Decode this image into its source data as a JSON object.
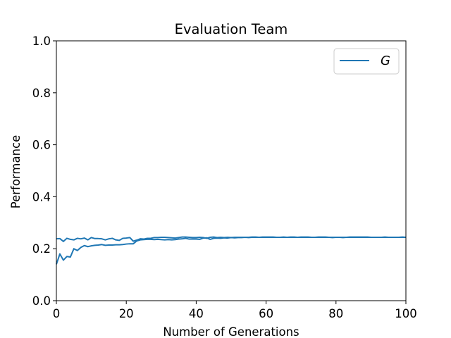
{
  "chart_data": {
    "type": "line",
    "title": "Evaluation Team",
    "xlabel": "Number of Generations",
    "ylabel": "Performance",
    "xlim": [
      0,
      100
    ],
    "ylim": [
      0,
      1
    ],
    "xticks": [
      "0",
      "20",
      "40",
      "60",
      "80",
      "100"
    ],
    "yticks": [
      "0.0",
      "0.2",
      "0.4",
      "0.6",
      "0.8",
      "1.0"
    ],
    "grid": false,
    "legend_position": "top-right",
    "color": "#1f77b4",
    "series": [
      {
        "name": "G",
        "x": [
          0,
          1,
          2,
          3,
          4,
          5,
          6,
          7,
          8,
          9,
          10,
          11,
          12,
          13,
          14,
          15,
          16,
          17,
          18,
          19,
          20,
          21,
          22,
          23,
          24,
          25,
          26,
          27,
          28,
          29,
          30,
          31,
          32,
          33,
          34,
          35,
          36,
          37,
          38,
          39,
          40,
          41,
          42,
          43,
          44,
          45,
          46,
          47,
          48,
          49,
          50,
          51,
          52,
          53,
          54,
          55,
          56,
          57,
          58,
          59,
          60,
          61,
          62,
          63,
          64,
          65,
          66,
          67,
          68,
          69,
          70,
          71,
          72,
          73,
          74,
          75,
          76,
          77,
          78,
          79,
          80,
          81,
          82,
          83,
          84,
          85,
          86,
          87,
          88,
          89,
          90,
          91,
          92,
          93,
          94,
          95,
          96,
          97,
          98,
          99,
          100
        ],
        "y": [
          0.238,
          0.239,
          0.228,
          0.24,
          0.236,
          0.234,
          0.24,
          0.238,
          0.241,
          0.234,
          0.243,
          0.239,
          0.239,
          0.238,
          0.234,
          0.238,
          0.24,
          0.234,
          0.232,
          0.24,
          0.241,
          0.243,
          0.229,
          0.233,
          0.238,
          0.237,
          0.24,
          0.24,
          0.243,
          0.243,
          0.244,
          0.244,
          0.243,
          0.242,
          0.241,
          0.243,
          0.245,
          0.245,
          0.244,
          0.243,
          0.243,
          0.244,
          0.243,
          0.24,
          0.244,
          0.245,
          0.243,
          0.244,
          0.243,
          0.244,
          0.243,
          0.244,
          0.244,
          0.244,
          0.244,
          0.244,
          0.245,
          0.245,
          0.244,
          0.245,
          0.245,
          0.245,
          0.245,
          0.244,
          0.244,
          0.245,
          0.244,
          0.245,
          0.245,
          0.244,
          0.245,
          0.245,
          0.245,
          0.244,
          0.244,
          0.245,
          0.245,
          0.245,
          0.244,
          0.243,
          0.244,
          0.244,
          0.243,
          0.244,
          0.245,
          0.245,
          0.245,
          0.245,
          0.245,
          0.245,
          0.244,
          0.244,
          0.244,
          0.244,
          0.245,
          0.244,
          0.244,
          0.244,
          0.244,
          0.245,
          0.244
        ]
      },
      {
        "name": "",
        "x": [
          0,
          1,
          2,
          3,
          4,
          5,
          6,
          7,
          8,
          9,
          10,
          11,
          12,
          13,
          14,
          15,
          16,
          17,
          18,
          19,
          20,
          21,
          22,
          23,
          24,
          25,
          26,
          27,
          28,
          29,
          30,
          31,
          32,
          33,
          34,
          35,
          36,
          37,
          38,
          39,
          40,
          41,
          42,
          43,
          44,
          45,
          46,
          47,
          48,
          49,
          50,
          51,
          52,
          53,
          54,
          55,
          56,
          57,
          58,
          59,
          60,
          61,
          62,
          63,
          64,
          65,
          66,
          67,
          68,
          69,
          70,
          71,
          72,
          73,
          74,
          75,
          76,
          77,
          78,
          79,
          80,
          81,
          82,
          83,
          84,
          85,
          86,
          87,
          88,
          89,
          90,
          91,
          92,
          93,
          94,
          95,
          96,
          97,
          98,
          99,
          100
        ],
        "y": [
          0.14,
          0.18,
          0.156,
          0.17,
          0.168,
          0.2,
          0.193,
          0.205,
          0.212,
          0.208,
          0.211,
          0.213,
          0.214,
          0.216,
          0.213,
          0.214,
          0.214,
          0.215,
          0.215,
          0.216,
          0.218,
          0.219,
          0.219,
          0.23,
          0.234,
          0.235,
          0.236,
          0.236,
          0.235,
          0.236,
          0.235,
          0.234,
          0.235,
          0.234,
          0.235,
          0.237,
          0.238,
          0.24,
          0.237,
          0.237,
          0.237,
          0.236,
          0.241,
          0.242,
          0.236,
          0.24,
          0.241,
          0.24,
          0.242,
          0.241,
          0.243,
          0.242,
          0.243,
          0.243,
          0.244,
          0.243,
          0.244,
          0.244,
          0.244,
          0.244,
          0.244,
          0.244,
          0.244,
          0.244,
          0.244,
          0.244,
          0.244,
          0.244,
          0.244,
          0.244,
          0.244,
          0.244,
          0.244,
          0.244,
          0.244,
          0.244,
          0.244,
          0.244,
          0.244,
          0.244,
          0.244,
          0.244,
          0.244,
          0.244,
          0.244,
          0.244,
          0.244,
          0.244,
          0.244,
          0.244,
          0.244,
          0.244,
          0.244,
          0.244,
          0.244,
          0.244,
          0.244,
          0.244,
          0.244,
          0.244,
          0.244
        ]
      }
    ]
  }
}
